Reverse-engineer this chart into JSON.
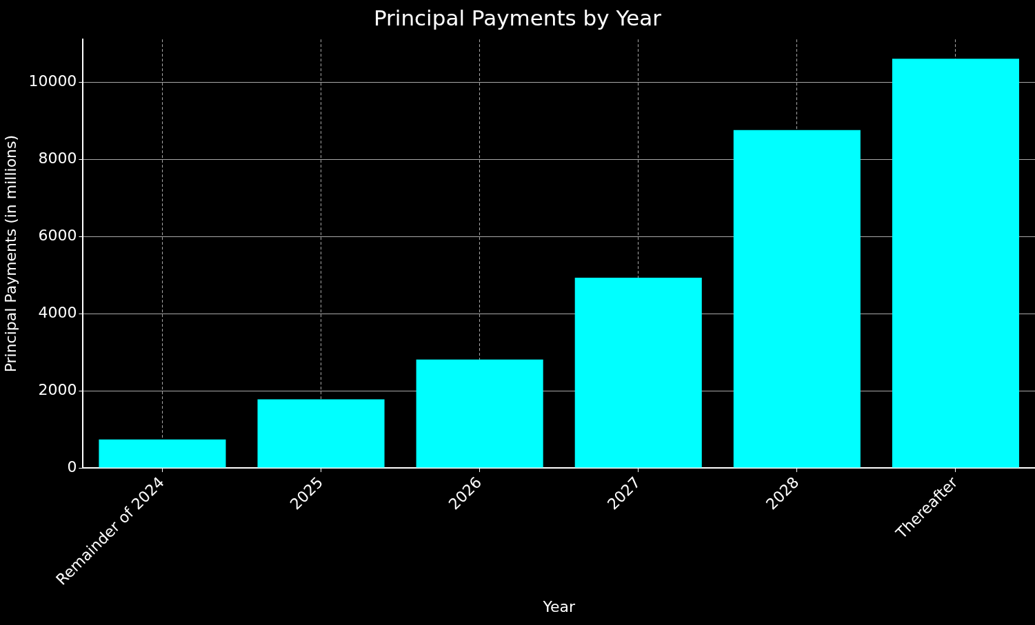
{
  "chart_data": {
    "type": "bar",
    "title": "Principal Payments by Year",
    "xlabel": "Year",
    "ylabel": "Principal Payments (in millions)",
    "categories": [
      "Remainder of 2024",
      "2025",
      "2026",
      "2027",
      "2028",
      "Thereafter"
    ],
    "values": [
      740,
      1780,
      2810,
      4930,
      8760,
      10610
    ],
    "color": "#00ffff",
    "ylim": [
      0,
      11110
    ],
    "yticks": [
      0,
      2000,
      4000,
      6000,
      8000,
      10000
    ],
    "grid": true,
    "line_style": "dashed",
    "legend": false
  }
}
